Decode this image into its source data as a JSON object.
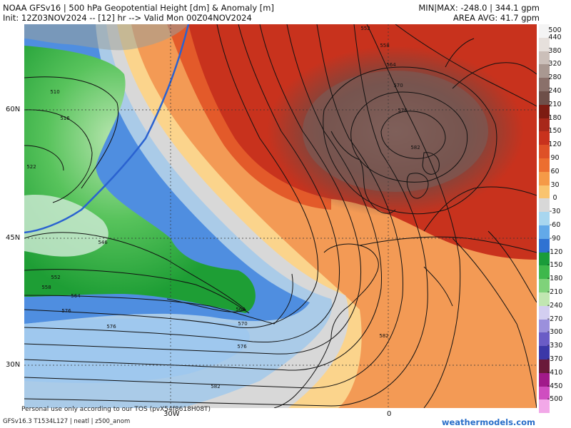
{
  "header": {
    "title": "NOAA GFSv16 | 500 hPa Geopotential Height [dm] & Anomaly [m]",
    "init": "Init: 12Z03NOV2024 -- [12] hr --> Valid Mon 00Z04NOV2024",
    "minmax": "MIN|MAX: -248.0 | 344.1 gpm",
    "area_avg": "AREA AVG: 41.7 gpm"
  },
  "map": {
    "lat_labels": [
      "60N",
      "45N",
      "30N"
    ],
    "lon_labels": [
      "30W",
      "0"
    ],
    "contour_labels": [
      "510",
      "516",
      "522",
      "546",
      "552",
      "558",
      "564",
      "564",
      "570",
      "576",
      "576",
      "576",
      "582",
      "552",
      "558",
      "564",
      "570",
      "576",
      "582",
      "582"
    ],
    "colors": {
      "strong_positive": "#6e4a44",
      "positive": "#c8321d",
      "weak_positive": "#f08a3a",
      "neutral": "#d8d8d8",
      "weak_negative": "#aacbe8",
      "negative": "#2f72d2",
      "strong_negative": "#1e9e35",
      "land_outline": "#111111"
    }
  },
  "colorbar": {
    "levels": [
      "500",
      "440",
      "380",
      "320",
      "280",
      "240",
      "210",
      "180",
      "150",
      "120",
      "90",
      "60",
      "30",
      "0",
      "-30",
      "-60",
      "-90",
      "-120",
      "-150",
      "-180",
      "-210",
      "-240",
      "-270",
      "-300",
      "-330",
      "-370",
      "-410",
      "-450",
      "-500"
    ],
    "colors": [
      "#f4f4f4",
      "#e6e0dc",
      "#cbbfb9",
      "#a99891",
      "#8a706a",
      "#6e4f49",
      "#7d1c12",
      "#a8281a",
      "#c8321d",
      "#de5127",
      "#ec6e2f",
      "#f59a47",
      "#f9c46f",
      "#d8d8d8",
      "#a8d6ef",
      "#63a9e8",
      "#2f72d2",
      "#1a9c3a",
      "#3fb84c",
      "#7fd27a",
      "#c1e6b1",
      "#d3cef0",
      "#9b90dc",
      "#6a5cc6",
      "#3b38a8",
      "#6a1a3a",
      "#a11a8a",
      "#cf4ec0",
      "#f2a8e8"
    ]
  },
  "footer": {
    "personal": "Personal use only according to our TOS (pvX54f8618H08T)",
    "model_info": "GFSv16.3 T1534L127 | neatl | z500_anom",
    "brand": "weathermodels.com"
  }
}
